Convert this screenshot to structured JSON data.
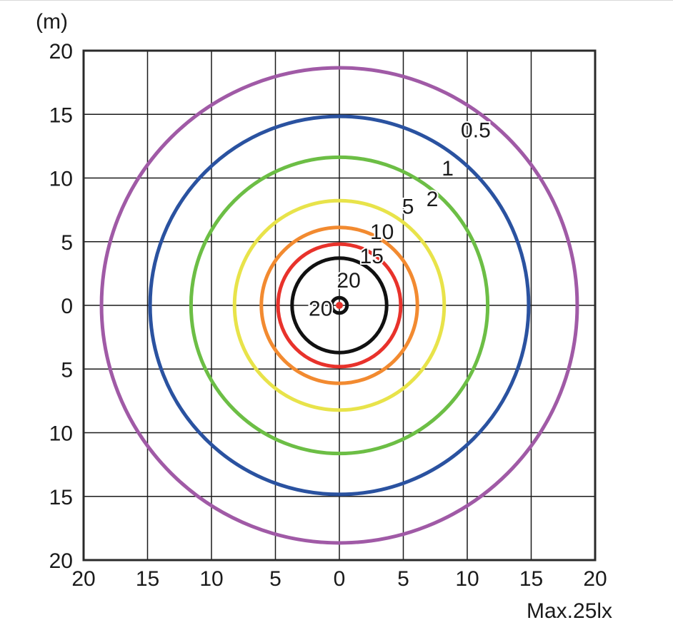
{
  "chart_data": {
    "type": "isolux-contour",
    "unit_label": "(m)",
    "max_label": "Max.25lx",
    "xlim": [
      -20,
      20
    ],
    "ylim": [
      -20,
      20
    ],
    "grid": true,
    "x_ticks": [
      "20",
      "15",
      "10",
      "5",
      "0",
      "5",
      "10",
      "15",
      "20"
    ],
    "y_ticks": [
      "20",
      "15",
      "10",
      "5",
      "0",
      "5",
      "10",
      "15",
      "20"
    ],
    "contours": [
      {
        "lux": "0.5",
        "radius": 18.6,
        "color": "#a05aa6"
      },
      {
        "lux": "1",
        "radius": 14.8,
        "color": "#2a52a0"
      },
      {
        "lux": "2",
        "radius": 11.6,
        "color": "#6cbe45"
      },
      {
        "lux": "5",
        "radius": 8.2,
        "color": "#e8e34a"
      },
      {
        "lux": "10",
        "radius": 6.1,
        "color": "#f28a30"
      },
      {
        "lux": "15",
        "radius": 4.8,
        "color": "#e8322b"
      },
      {
        "lux": "20",
        "radius": 3.7,
        "color": "#111111"
      },
      {
        "lux": "20",
        "radius": 0.6,
        "color": "#111111"
      }
    ],
    "center_color": "#e8322b"
  }
}
